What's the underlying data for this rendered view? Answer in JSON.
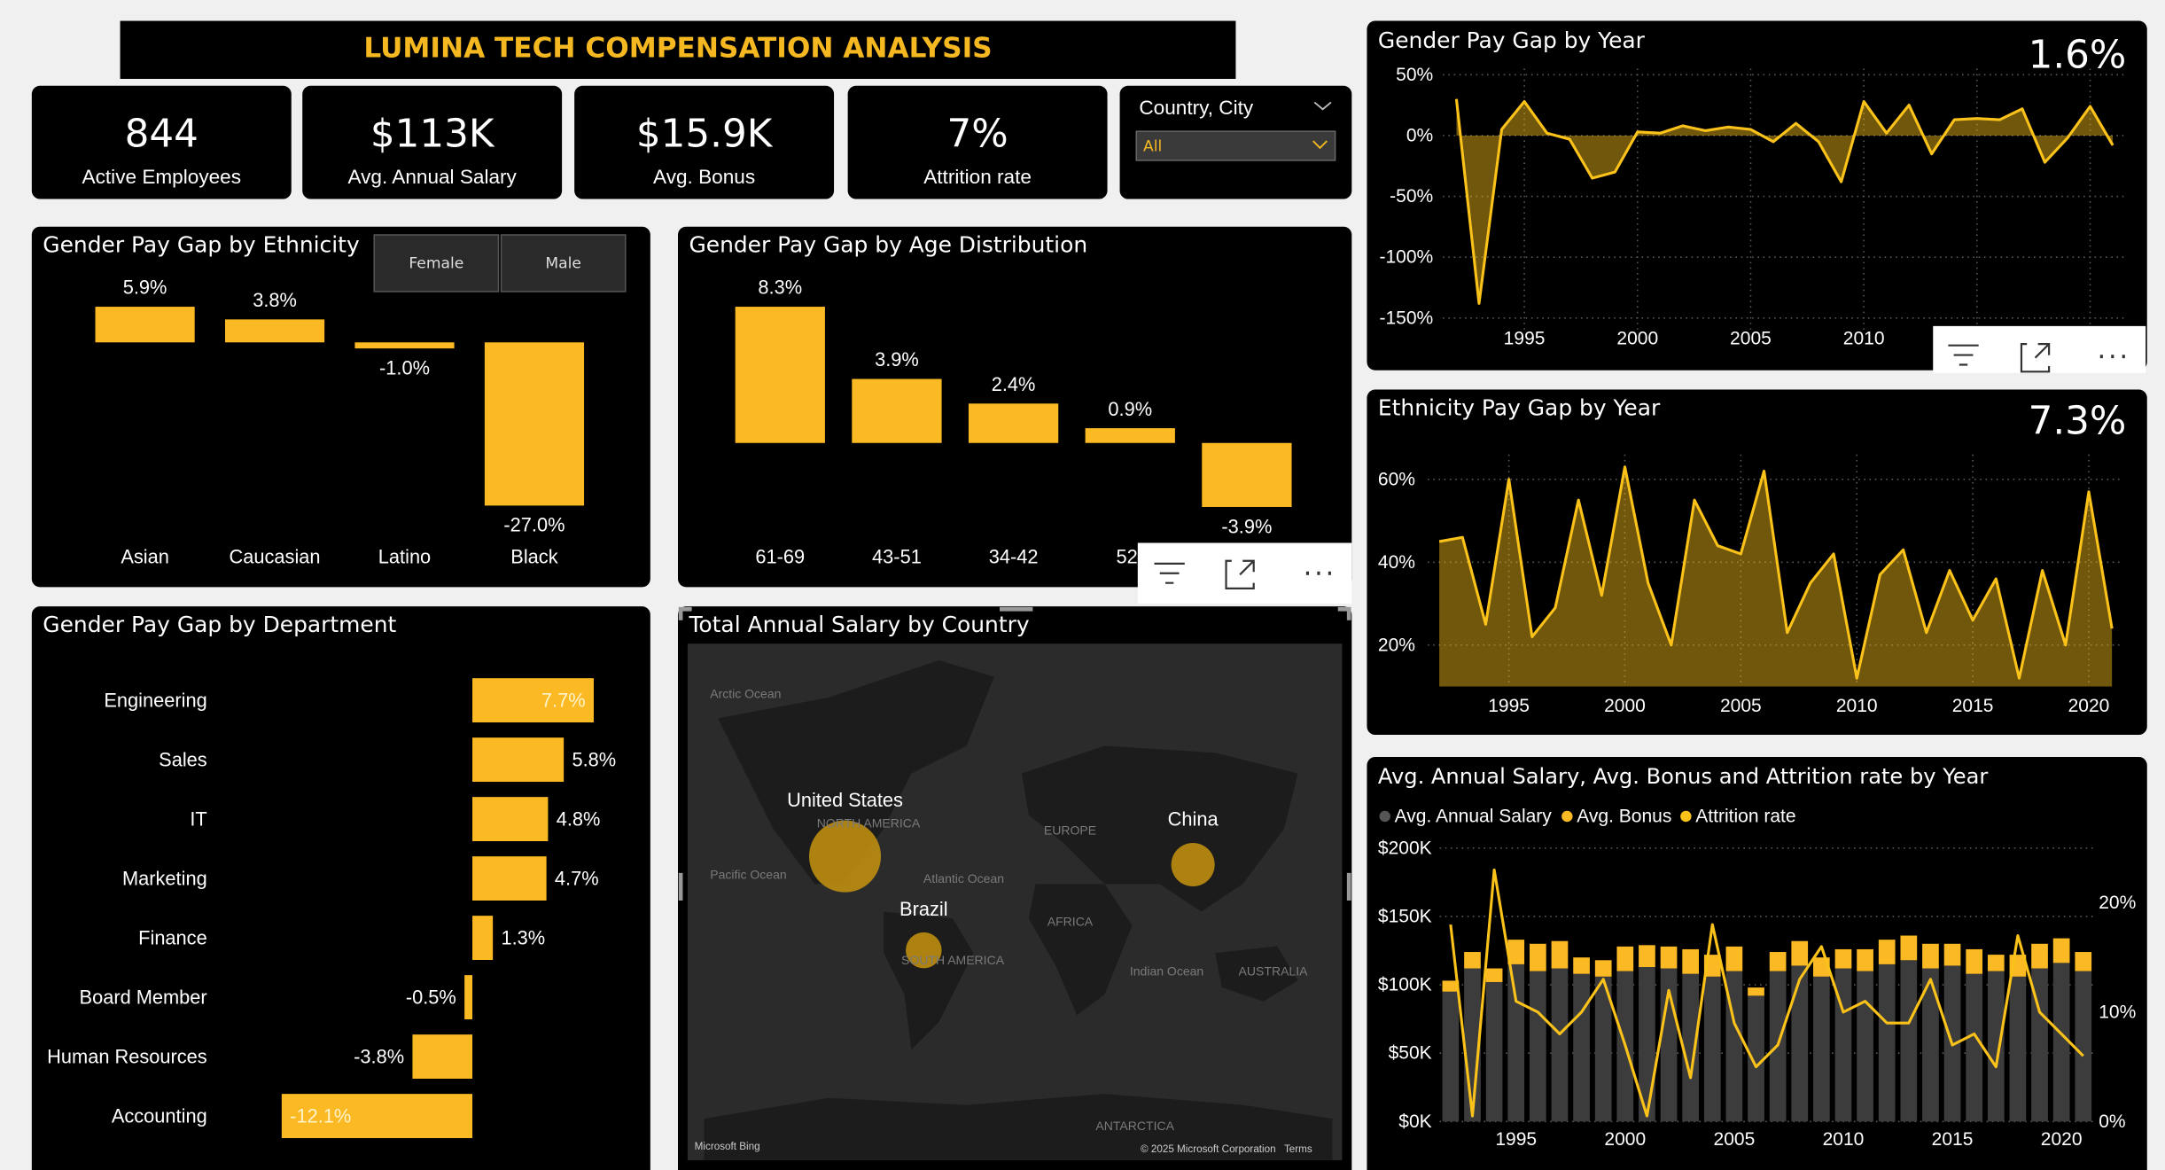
{
  "title": "LUMINA TECH COMPENSATION ANALYSIS",
  "kpis": [
    {
      "value": "844",
      "label": "Active Employees"
    },
    {
      "value": "$113K",
      "label": "Avg. Annual Salary"
    },
    {
      "value": "$15.9K",
      "label": "Avg. Bonus"
    },
    {
      "value": "7%",
      "label": "Attrition rate"
    }
  ],
  "slicer": {
    "label": "Country, City",
    "value": "All"
  },
  "gender_slicer": [
    "Female",
    "Male"
  ],
  "chart_data": [
    {
      "type": "bar",
      "title": "Gender Pay Gap by Ethnicity",
      "color": "#fbb924",
      "categories": [
        "Asian",
        "Caucasian",
        "Latino",
        "Black"
      ],
      "values": [
        5.9,
        3.8,
        -1.0,
        -27.0
      ],
      "value_labels": [
        "5.9%",
        "3.8%",
        "-1.0%",
        "-27.0%"
      ]
    },
    {
      "type": "bar",
      "title": "Gender Pay Gap by Age Distribution",
      "color": "#fbb924",
      "categories": [
        "61-69",
        "43-51",
        "34-42",
        "52-",
        null
      ],
      "values": [
        8.3,
        3.9,
        2.4,
        0.9,
        -3.9
      ],
      "value_labels": [
        "8.3%",
        "3.9%",
        "2.4%",
        "0.9%",
        "-3.9%"
      ]
    },
    {
      "type": "hbar",
      "title": "Gender Pay Gap by Department",
      "color": "#fbb924",
      "categories": [
        "Engineering",
        "Sales",
        "IT",
        "Marketing",
        "Finance",
        "Board Member",
        "Human Resources",
        "Accounting"
      ],
      "values": [
        7.7,
        5.8,
        4.8,
        4.7,
        1.3,
        -0.5,
        -3.8,
        -12.1
      ],
      "value_labels": [
        "7.7%",
        "5.8%",
        "4.8%",
        "4.7%",
        "1.3%",
        "-0.5%",
        "-3.8%",
        "-12.1%"
      ]
    },
    {
      "type": "bubble_map",
      "title": "Total Annual Salary by Country",
      "color": "#c8940f",
      "categories": [
        "United States",
        "China",
        "Brazil"
      ],
      "values": [
        60,
        22,
        15
      ],
      "map_labels": [
        "Arctic Ocean",
        "NORTH AMERICA",
        "Pacific Ocean",
        "Atlantic Ocean",
        "EUROPE",
        "AFRICA",
        "SOUTH AMERICA",
        "Indian Ocean",
        "AUSTRALIA",
        "ANTARCTICA",
        "Microsoft Bing",
        "© 2025 Microsoft Corporation",
        "Terms"
      ]
    },
    {
      "type": "line",
      "title": "Gender Pay Gap by Year",
      "headline": "1.6%",
      "color": "#fbc21a",
      "grid": true,
      "x": [
        1992,
        1993,
        1994,
        1995,
        1996,
        1997,
        1998,
        1999,
        2000,
        2001,
        2002,
        2003,
        2004,
        2005,
        2006,
        2007,
        2008,
        2009,
        2010,
        2011,
        2012,
        2013,
        2014,
        2015,
        2016,
        2017,
        2018,
        2019,
        2020,
        2021
      ],
      "values": [
        30,
        -138,
        5,
        28,
        2,
        -3,
        -35,
        -30,
        3,
        2,
        8,
        4,
        7,
        5,
        -5,
        10,
        -5,
        -38,
        28,
        2,
        25,
        -15,
        13,
        14,
        13,
        22,
        -22,
        -2,
        24,
        -8
      ],
      "xlim": [
        1991.4,
        2021.6
      ],
      "xticks": [
        1995,
        2000,
        2005,
        2010,
        2015,
        2020
      ],
      "ylim": [
        -160,
        55
      ],
      "yticks": [
        {
          "value": 50,
          "label": "50%"
        },
        {
          "value": 0,
          "label": "0%"
        },
        {
          "value": -50,
          "label": "-50%"
        },
        {
          "value": -100,
          "label": "-100%"
        },
        {
          "value": -150,
          "label": "-150%"
        }
      ]
    },
    {
      "type": "area",
      "title": "Ethnicity Pay Gap by Year",
      "headline": "7.3%",
      "color": "#fbc21a",
      "grid": true,
      "x": [
        1992,
        1993,
        1994,
        1995,
        1996,
        1997,
        1998,
        1999,
        2000,
        2001,
        2002,
        2003,
        2004,
        2005,
        2006,
        2007,
        2008,
        2009,
        2010,
        2011,
        2012,
        2013,
        2014,
        2015,
        2016,
        2017,
        2018,
        2019,
        2020,
        2021
      ],
      "values": [
        45,
        46,
        25,
        60,
        22,
        29,
        55,
        32,
        63,
        35,
        20,
        55,
        44,
        42,
        62,
        23,
        35,
        42,
        12,
        37,
        43,
        23,
        38,
        26,
        36,
        12,
        38,
        20,
        57,
        24
      ],
      "xlim": [
        1991.5,
        2021.5
      ],
      "xticks": [
        1995,
        2000,
        2005,
        2010,
        2015,
        2020
      ],
      "ylim": [
        10,
        66
      ],
      "yticks": [
        {
          "value": 20,
          "label": "20%"
        },
        {
          "value": 40,
          "label": "40%"
        },
        {
          "value": 60,
          "label": "60%"
        }
      ]
    },
    {
      "type": "combo",
      "title": "Avg. Annual Salary, Avg. Bonus and Attrition rate by Year",
      "grid": true,
      "x": [
        1992,
        1993,
        1994,
        1995,
        1996,
        1997,
        1998,
        1999,
        2000,
        2001,
        2002,
        2003,
        2004,
        2005,
        2006,
        2007,
        2008,
        2009,
        2010,
        2011,
        2012,
        2013,
        2014,
        2015,
        2016,
        2017,
        2018,
        2019,
        2020,
        2021
      ],
      "series": [
        {
          "name": "Avg. Annual Salary",
          "color": "#3c3c3c",
          "values": [
            95,
            112,
            102,
            115,
            110,
            112,
            108,
            106,
            110,
            113,
            112,
            108,
            106,
            110,
            92,
            110,
            114,
            106,
            112,
            110,
            115,
            118,
            112,
            114,
            108,
            110,
            106,
            112,
            116,
            110
          ]
        },
        {
          "name": "Avg. Bonus",
          "color": "#fbb924",
          "values": [
            8,
            12,
            10,
            18,
            20,
            20,
            12,
            12,
            18,
            16,
            16,
            18,
            16,
            18,
            6,
            14,
            18,
            14,
            14,
            16,
            18,
            18,
            18,
            16,
            18,
            12,
            16,
            18,
            18,
            14
          ]
        },
        {
          "name": "Attrition rate",
          "color": "#fbc21a",
          "axis": "y2",
          "values": [
            18,
            0.5,
            23,
            11,
            10,
            8,
            10,
            13,
            7,
            0.5,
            12,
            4,
            18,
            9,
            5,
            7,
            13,
            16,
            10,
            11,
            9,
            9,
            13,
            7,
            8,
            5,
            17,
            10,
            8,
            6
          ]
        }
      ],
      "xlim": [
        1991.5,
        2021.5
      ],
      "xticks": [
        1995,
        2000,
        2005,
        2010,
        2015,
        2020
      ],
      "ylim": [
        0,
        200
      ],
      "yticks": [
        {
          "value": 0,
          "label": "$0K"
        },
        {
          "value": 50,
          "label": "$50K"
        },
        {
          "value": 100,
          "label": "$100K"
        },
        {
          "value": 150,
          "label": "$150K"
        },
        {
          "value": 200,
          "label": "$200K"
        }
      ],
      "y2lim": [
        0,
        25
      ],
      "y2ticks": [
        {
          "value": 0,
          "label": "0%"
        },
        {
          "value": 10,
          "label": "10%"
        },
        {
          "value": 20,
          "label": "20%"
        }
      ]
    }
  ]
}
